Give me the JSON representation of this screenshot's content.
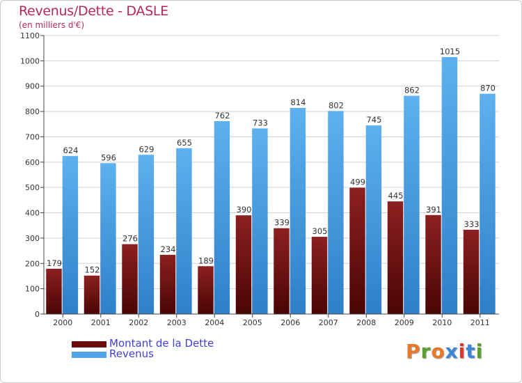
{
  "header": {
    "title": "Revenus/Dette - DASLE",
    "subtitle": "(en milliers d'€)"
  },
  "colors": {
    "debt": "#7a1010",
    "revenue": "#4ea4e8",
    "title": "#b5275e",
    "legend_text": "#3f3fd9"
  },
  "chart_data": {
    "type": "bar",
    "title": "Revenus/Dette - DASLE",
    "subtitle": "(en milliers d'€)",
    "xlabel": "",
    "ylabel": "",
    "categories": [
      "2000",
      "2001",
      "2002",
      "2003",
      "2004",
      "2005",
      "2006",
      "2007",
      "2008",
      "2009",
      "2010",
      "2011"
    ],
    "series": [
      {
        "name": "Montant de la Dette",
        "values": [
          179,
          152,
          276,
          234,
          189,
          390,
          339,
          305,
          499,
          445,
          391,
          333
        ]
      },
      {
        "name": "Revenus",
        "values": [
          624,
          596,
          629,
          655,
          762,
          733,
          814,
          802,
          745,
          862,
          1015,
          870
        ]
      }
    ],
    "ylim": [
      0,
      1100
    ],
    "yticks": [
      0,
      100,
      200,
      300,
      400,
      500,
      600,
      700,
      800,
      900,
      1000,
      1100
    ],
    "grid": true,
    "legend": "bottom-left"
  },
  "legend": {
    "items": [
      {
        "label": "Montant de la Dette",
        "color": "#6b0b0b"
      },
      {
        "label": "Revenus",
        "color": "#4ea4e8"
      }
    ]
  },
  "logo": {
    "text": "Proxiti",
    "colors": [
      "#e8792b",
      "#5aa02c",
      "#e8792b",
      "#3c86d6",
      "#e2352e",
      "#3c86d6",
      "#5aa02c"
    ]
  }
}
